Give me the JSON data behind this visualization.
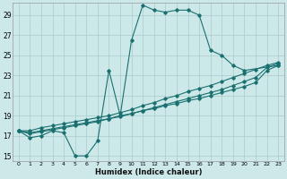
{
  "xlabel": "Humidex (Indice chaleur)",
  "xlim": [
    -0.5,
    23.5
  ],
  "ylim": [
    14.5,
    30.2
  ],
  "yticks": [
    15,
    17,
    19,
    21,
    23,
    25,
    27,
    29
  ],
  "xticks": [
    0,
    1,
    2,
    3,
    4,
    5,
    6,
    7,
    8,
    9,
    10,
    11,
    12,
    13,
    14,
    15,
    16,
    17,
    18,
    19,
    20,
    21,
    22,
    23
  ],
  "bg_color": "#cde8e8",
  "grid_color": "#aacccc",
  "line_color": "#1a7070",
  "series": [
    {
      "x": [
        0,
        1,
        2,
        3,
        4,
        5,
        6,
        7,
        8,
        9,
        10,
        11,
        12,
        13,
        14,
        15,
        16,
        17,
        18,
        19,
        20,
        23
      ],
      "y": [
        17.5,
        16.8,
        17.0,
        17.5,
        17.3,
        15.0,
        15.0,
        16.5,
        23.5,
        19.0,
        26.5,
        30.0,
        29.5,
        29.3,
        29.5,
        29.5,
        29.0,
        25.5,
        25.0,
        24.0,
        23.5,
        24.0
      ]
    },
    {
      "x": [
        0,
        1,
        2,
        3,
        4,
        5,
        6,
        7,
        8,
        9,
        10,
        11,
        12,
        13,
        14,
        15,
        16,
        17,
        18,
        19,
        20,
        21,
        22,
        23
      ],
      "y": [
        17.5,
        17.5,
        17.8,
        18.0,
        18.2,
        18.4,
        18.6,
        18.8,
        19.0,
        19.3,
        19.6,
        20.0,
        20.3,
        20.7,
        21.0,
        21.4,
        21.7,
        22.0,
        22.4,
        22.8,
        23.2,
        23.6,
        24.0,
        24.3
      ]
    },
    {
      "x": [
        0,
        1,
        2,
        3,
        4,
        5,
        6,
        7,
        8,
        9,
        10,
        11,
        12,
        13,
        14,
        15,
        16,
        17,
        18,
        19,
        20,
        21,
        22,
        23
      ],
      "y": [
        17.5,
        17.3,
        17.5,
        17.7,
        17.9,
        18.1,
        18.3,
        18.5,
        18.7,
        18.9,
        19.2,
        19.5,
        19.7,
        20.0,
        20.2,
        20.5,
        20.7,
        21.0,
        21.3,
        21.6,
        21.9,
        22.3,
        23.5,
        24.0
      ]
    },
    {
      "x": [
        0,
        1,
        2,
        3,
        4,
        5,
        6,
        7,
        8,
        9,
        10,
        11,
        12,
        13,
        14,
        15,
        16,
        17,
        18,
        19,
        20,
        21,
        22,
        23
      ],
      "y": [
        17.5,
        17.2,
        17.4,
        17.6,
        17.8,
        18.0,
        18.2,
        18.4,
        18.7,
        19.0,
        19.2,
        19.5,
        19.8,
        20.1,
        20.4,
        20.7,
        21.0,
        21.3,
        21.6,
        22.0,
        22.4,
        22.8,
        23.8,
        24.2
      ]
    }
  ]
}
